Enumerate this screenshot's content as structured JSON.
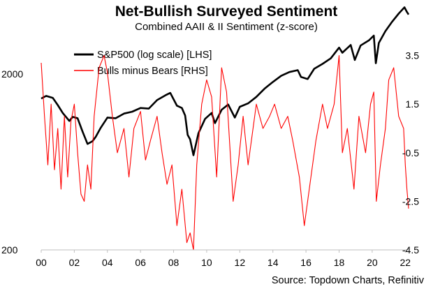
{
  "chart_data": {
    "type": "line",
    "title": "Net-Bullish Surveyed Sentiment",
    "subtitle": "Combined AAII & II Sentiment (z-score)",
    "source": "Source: Topdown Charts, Refinitiv",
    "x_ticks": [
      "00",
      "02",
      "04",
      "06",
      "08",
      "10",
      "12",
      "14",
      "16",
      "18",
      "20",
      "22"
    ],
    "xlim": [
      2000,
      2022.2
    ],
    "left_axis": {
      "scale": "log",
      "ylim": [
        200,
        4800
      ],
      "tick_labels": [
        "2000",
        "200"
      ],
      "tick_values": [
        2000,
        200
      ]
    },
    "right_axis": {
      "ylim": [
        -4.5,
        5.5
      ],
      "tick_labels": [
        "3.5",
        "1.5",
        "-0.5",
        "-2.5",
        "-4.5"
      ],
      "tick_values": [
        3.5,
        1.5,
        -0.5,
        -2.5,
        -4.5
      ]
    },
    "legend": {
      "position": "top-left"
    },
    "series": [
      {
        "name": "S&P500 (log scale) [LHS]",
        "axis": "left",
        "color": "#000000",
        "points": [
          [
            2000.0,
            1450
          ],
          [
            2000.3,
            1500
          ],
          [
            2000.7,
            1460
          ],
          [
            2001.0,
            1330
          ],
          [
            2001.3,
            1200
          ],
          [
            2001.7,
            1080
          ],
          [
            2001.9,
            1140
          ],
          [
            2002.2,
            1120
          ],
          [
            2002.5,
            940
          ],
          [
            2002.8,
            800
          ],
          [
            2003.1,
            830
          ],
          [
            2003.3,
            880
          ],
          [
            2003.6,
            990
          ],
          [
            2004.0,
            1130
          ],
          [
            2004.5,
            1120
          ],
          [
            2005.0,
            1190
          ],
          [
            2005.5,
            1220
          ],
          [
            2006.0,
            1280
          ],
          [
            2006.5,
            1270
          ],
          [
            2007.0,
            1420
          ],
          [
            2007.5,
            1510
          ],
          [
            2007.8,
            1560
          ],
          [
            2008.2,
            1320
          ],
          [
            2008.5,
            1280
          ],
          [
            2008.7,
            1160
          ],
          [
            2008.85,
            900
          ],
          [
            2009.0,
            850
          ],
          [
            2009.2,
            690
          ],
          [
            2009.5,
            920
          ],
          [
            2009.9,
            1110
          ],
          [
            2010.3,
            1200
          ],
          [
            2010.5,
            1050
          ],
          [
            2010.9,
            1250
          ],
          [
            2011.3,
            1340
          ],
          [
            2011.7,
            1130
          ],
          [
            2012.0,
            1300
          ],
          [
            2012.5,
            1360
          ],
          [
            2013.0,
            1480
          ],
          [
            2013.5,
            1650
          ],
          [
            2014.0,
            1800
          ],
          [
            2014.5,
            1950
          ],
          [
            2015.0,
            2050
          ],
          [
            2015.5,
            2100
          ],
          [
            2015.7,
            1920
          ],
          [
            2016.1,
            1870
          ],
          [
            2016.5,
            2140
          ],
          [
            2017.0,
            2280
          ],
          [
            2017.5,
            2450
          ],
          [
            2018.0,
            2820
          ],
          [
            2018.2,
            2640
          ],
          [
            2018.7,
            2920
          ],
          [
            2018.95,
            2400
          ],
          [
            2019.3,
            2900
          ],
          [
            2019.8,
            3100
          ],
          [
            2020.1,
            3300
          ],
          [
            2020.22,
            2300
          ],
          [
            2020.4,
            3000
          ],
          [
            2020.8,
            3500
          ],
          [
            2021.2,
            3950
          ],
          [
            2021.6,
            4400
          ],
          [
            2021.95,
            4780
          ],
          [
            2022.1,
            4500
          ],
          [
            2022.2,
            4350
          ]
        ]
      },
      {
        "name": "Bulls minus Bears [RHS]",
        "axis": "right",
        "color": "#ff0000",
        "points": [
          [
            2000.0,
            3.2
          ],
          [
            2000.2,
            1.0
          ],
          [
            2000.4,
            -1.0
          ],
          [
            2000.6,
            1.5
          ],
          [
            2000.8,
            -1.2
          ],
          [
            2001.0,
            0.5
          ],
          [
            2001.2,
            -2.0
          ],
          [
            2001.4,
            1.0
          ],
          [
            2001.6,
            -1.5
          ],
          [
            2001.8,
            0.8
          ],
          [
            2002.0,
            1.5
          ],
          [
            2002.2,
            -0.5
          ],
          [
            2002.4,
            -2.2
          ],
          [
            2002.6,
            -2.5
          ],
          [
            2002.8,
            -1.0
          ],
          [
            2003.0,
            -2.0
          ],
          [
            2003.2,
            1.0
          ],
          [
            2003.5,
            3.0
          ],
          [
            2003.8,
            3.5
          ],
          [
            2004.0,
            2.8
          ],
          [
            2004.3,
            1.0
          ],
          [
            2004.6,
            -0.5
          ],
          [
            2005.0,
            0.5
          ],
          [
            2005.3,
            -1.5
          ],
          [
            2005.6,
            0.5
          ],
          [
            2006.0,
            1.2
          ],
          [
            2006.3,
            -0.8
          ],
          [
            2006.6,
            0.0
          ],
          [
            2007.0,
            1.0
          ],
          [
            2007.3,
            -0.5
          ],
          [
            2007.6,
            -1.8
          ],
          [
            2007.9,
            -1.0
          ],
          [
            2008.2,
            -3.5
          ],
          [
            2008.5,
            -2.0
          ],
          [
            2008.8,
            -4.2
          ],
          [
            2009.0,
            -3.8
          ],
          [
            2009.2,
            -4.5
          ],
          [
            2009.4,
            -1.0
          ],
          [
            2009.7,
            1.5
          ],
          [
            2010.0,
            2.5
          ],
          [
            2010.3,
            1.8
          ],
          [
            2010.6,
            -1.5
          ],
          [
            2010.9,
            3.0
          ],
          [
            2011.2,
            2.0
          ],
          [
            2011.6,
            -2.5
          ],
          [
            2011.9,
            -1.0
          ],
          [
            2012.2,
            1.0
          ],
          [
            2012.5,
            -1.0
          ],
          [
            2012.8,
            0.5
          ],
          [
            2013.0,
            1.5
          ],
          [
            2013.4,
            0.5
          ],
          [
            2013.8,
            1.0
          ],
          [
            2014.1,
            1.5
          ],
          [
            2014.5,
            0.5
          ],
          [
            2014.9,
            1.0
          ],
          [
            2015.2,
            0.0
          ],
          [
            2015.6,
            -1.5
          ],
          [
            2015.9,
            -3.5
          ],
          [
            2016.2,
            -2.0
          ],
          [
            2016.6,
            0.0
          ],
          [
            2017.0,
            1.5
          ],
          [
            2017.3,
            0.5
          ],
          [
            2017.7,
            1.5
          ],
          [
            2018.0,
            3.5
          ],
          [
            2018.2,
            -0.5
          ],
          [
            2018.5,
            0.5
          ],
          [
            2018.9,
            -2.0
          ],
          [
            2019.2,
            1.0
          ],
          [
            2019.6,
            -0.5
          ],
          [
            2019.9,
            1.5
          ],
          [
            2020.1,
            2.0
          ],
          [
            2020.25,
            -2.5
          ],
          [
            2020.5,
            -1.0
          ],
          [
            2020.8,
            0.5
          ],
          [
            2021.0,
            2.5
          ],
          [
            2021.3,
            3.0
          ],
          [
            2021.6,
            1.0
          ],
          [
            2021.9,
            0.5
          ],
          [
            2022.0,
            -1.0
          ],
          [
            2022.1,
            -2.0
          ],
          [
            2022.2,
            -2.8
          ]
        ]
      }
    ]
  }
}
